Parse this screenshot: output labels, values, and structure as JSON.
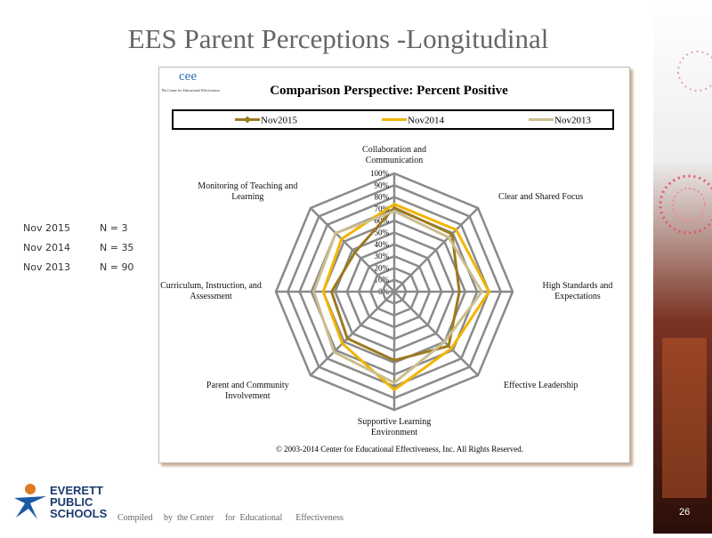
{
  "slide": {
    "title": "EES  Parent  Perceptions   -Longitudinal",
    "logo_text": "cee",
    "logo_caption": "The Center for Educational Effectiveness",
    "counts": [
      [
        "Nov  2015",
        "N  = 3"
      ],
      [
        "Nov  2014",
        "N  = 35"
      ],
      [
        "Nov  2013",
        "N  = 90"
      ]
    ],
    "school": [
      "EVERETT",
      "PUBLIC",
      "SCHOOLS"
    ],
    "footer": "Compiled     by  the Center     for  Educational      Effectiveness",
    "page_number": "26"
  },
  "chart_data": {
    "type": "radar",
    "title": "Comparison   Perspective:   Percent   Positive",
    "categories": [
      "Collaboration and Communication",
      "Clear and Shared Focus",
      "High Standards and Expectations",
      "Effective Leadership",
      "Supportive Learning Environment",
      "Parent and Community Involvement",
      "Curriculum, Instruction, and Assessment",
      "Monitoring of Teaching and Learning"
    ],
    "series": [
      {
        "name": "Nov2015",
        "color": "#9c7a1e",
        "marker": "diamond",
        "values": [
          71,
          69,
          55,
          65,
          58,
          56,
          53,
          47
        ]
      },
      {
        "name": "Nov2014",
        "color": "#f2b500",
        "values": [
          74,
          74,
          80,
          68,
          83,
          62,
          60,
          63
        ]
      },
      {
        "name": "Nov2013",
        "color": "#cbbd8e",
        "values": [
          68,
          65,
          74,
          60,
          77,
          72,
          68,
          70
        ]
      }
    ],
    "rlim": [
      0,
      100
    ],
    "rticks": [
      {
        "value": 0,
        "label": "0%"
      },
      {
        "value": 10,
        "label": "10%"
      },
      {
        "value": 20,
        "label": "20%"
      },
      {
        "value": 30,
        "label": "30%"
      },
      {
        "value": 40,
        "label": "40%"
      },
      {
        "value": 50,
        "label": "50%"
      },
      {
        "value": 60,
        "label": "60%"
      },
      {
        "value": 70,
        "label": "70%"
      },
      {
        "value": 80,
        "label": "80%"
      },
      {
        "value": 90,
        "label": "90%"
      },
      {
        "value": 100,
        "label": "100%"
      }
    ],
    "grid": true,
    "legend": "top",
    "copyright": "© 2003-2014 Center for Educational Effectiveness, Inc. All Rights Reserved."
  }
}
